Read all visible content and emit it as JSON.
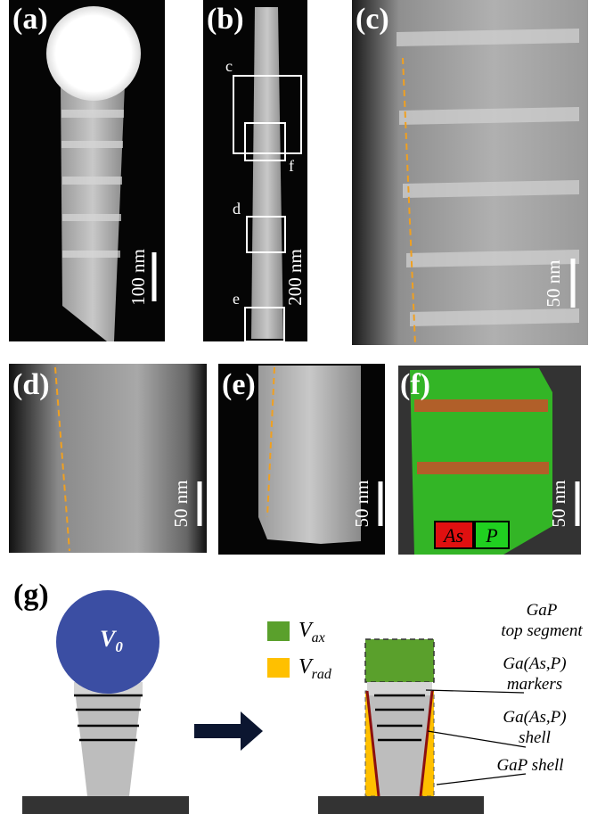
{
  "panels": {
    "a": {
      "label": "(a)",
      "scale": "100 nm"
    },
    "b": {
      "label": "(b)",
      "scale": "200 nm",
      "boxes": [
        "c",
        "f",
        "d",
        "e"
      ]
    },
    "c": {
      "label": "(c)",
      "scale": "50 nm"
    },
    "d": {
      "label": "(d)",
      "scale": "50 nm"
    },
    "e": {
      "label": "(e)",
      "scale": "50 nm"
    },
    "f": {
      "label": "(f)",
      "scale": "50 nm",
      "legend": [
        "As",
        "P"
      ]
    }
  },
  "g": {
    "label": "(g)",
    "droplet": {
      "base": "V",
      "sub": "0"
    },
    "legend": [
      {
        "base": "V",
        "sub": "ax"
      },
      {
        "base": "V",
        "sub": "rad"
      }
    ],
    "annotations": [
      [
        "GaP",
        "top segment"
      ],
      [
        "Ga(As,P)",
        "markers"
      ],
      [
        "Ga(As,P)",
        "shell"
      ],
      [
        "GaP shell"
      ]
    ]
  }
}
